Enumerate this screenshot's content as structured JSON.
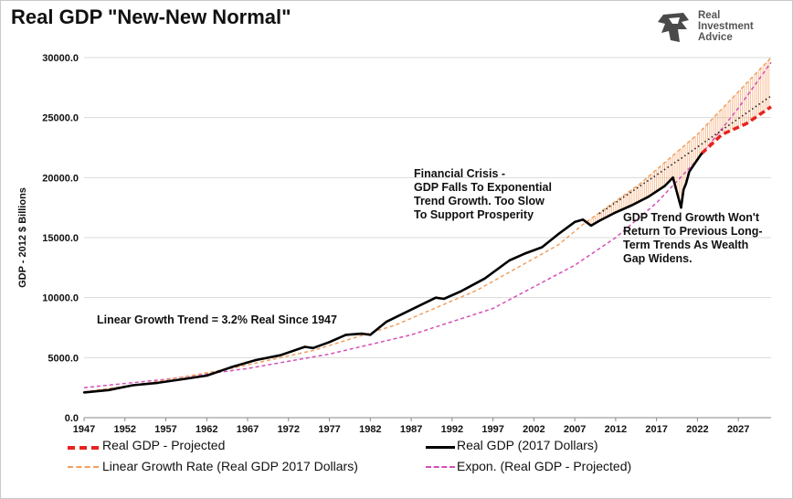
{
  "title": "Real GDP \"New-New Normal\"",
  "logo": {
    "name": "Real Investment Advice",
    "line1": "Real",
    "line2": "Investment",
    "line3": "Advice"
  },
  "chart_data": {
    "type": "line",
    "xlabel": "",
    "ylabel": "GDP - 2012 $ Billions",
    "xlim": [
      1947,
      2031
    ],
    "ylim": [
      0,
      30000
    ],
    "x_ticks": [
      "1947",
      "1952",
      "1957",
      "1962",
      "1967",
      "1972",
      "1977",
      "1982",
      "1987",
      "1992",
      "1997",
      "2002",
      "2007",
      "2012",
      "2017",
      "2022",
      "2027"
    ],
    "y_ticks": [
      "0.0",
      "5000.0",
      "10000.0",
      "15000.0",
      "20000.0",
      "25000.0",
      "30000.0"
    ],
    "grid": "horizontal",
    "legend": "bottom",
    "colors": {
      "actual": "#000000",
      "projected": "#e8231f",
      "linear": "#f0a060",
      "expon": "#d54fb8",
      "projected_fill": "#f5a36a",
      "trend_dots": "#222222"
    },
    "series": [
      {
        "name": "Real GDP (2017 Dollars)",
        "style": "solid-black",
        "x": [
          1947,
          1950,
          1953,
          1956,
          1959,
          1962,
          1965,
          1968,
          1971,
          1974,
          1975,
          1977,
          1979,
          1981,
          1982,
          1984,
          1987,
          1990,
          1991,
          1993,
          1996,
          1999,
          2001,
          2003,
          2005,
          2007,
          2008,
          2009,
          2010,
          2012,
          2014,
          2016,
          2018,
          2019,
          2020,
          2020.3,
          2020.6,
          2021,
          2022,
          2022.5
        ],
        "values": [
          2100,
          2300,
          2700,
          2900,
          3200,
          3500,
          4200,
          4800,
          5200,
          5900,
          5800,
          6300,
          6900,
          7000,
          6900,
          8000,
          9000,
          10000,
          9900,
          10500,
          11600,
          13100,
          13700,
          14200,
          15300,
          16300,
          16500,
          16000,
          16400,
          17100,
          17700,
          18400,
          19300,
          20000,
          17500,
          19000,
          19500,
          20500,
          21500,
          22000
        ]
      },
      {
        "name": "Real GDP - Projected",
        "style": "dashed-red",
        "x": [
          2022.5,
          2025,
          2028,
          2031
        ],
        "values": [
          22000,
          23600,
          24500,
          25900
        ]
      },
      {
        "name": "Linear Growth Rate (Real GDP 2017 Dollars)",
        "style": "dashed-orange",
        "x": [
          1947,
          1955,
          1965,
          1975,
          1985,
          1995,
          2005,
          2008,
          2015,
          2022,
          2031
        ],
        "values": [
          2150,
          2900,
          4100,
          5600,
          7700,
          10600,
          14400,
          16100,
          19500,
          23600,
          30000
        ]
      },
      {
        "name": "Expon. (Real GDP - Projected)",
        "style": "dashed-magenta",
        "x": [
          1947,
          1957,
          1967,
          1977,
          1987,
          1997,
          2007,
          2012,
          2017,
          2022,
          2027,
          2031
        ],
        "values": [
          2500,
          3200,
          4100,
          5300,
          6900,
          9100,
          12700,
          15000,
          17900,
          21500,
          25800,
          29600
        ]
      }
    ],
    "trend_dotted": {
      "x": [
        2010,
        2020,
        2031
      ],
      "values": [
        17000,
        21600,
        26800
      ]
    },
    "annotations": [
      {
        "text": [
          "Financial Crisis -",
          "GDP Falls To Exponential",
          "Trend Growth. Too Slow",
          "To Support Prosperity"
        ]
      },
      {
        "text": [
          "GDP Trend Growth Won't",
          "Return To Previous Long-",
          "Term Trends As Wealth",
          "Gap Widens."
        ]
      },
      {
        "text": [
          "Linear Growth Trend = 3.2% Real Since 1947"
        ]
      }
    ]
  },
  "legend_items": [
    {
      "label": "Real GDP - Projected"
    },
    {
      "label": "Real GDP (2017 Dollars)"
    },
    {
      "label": "Linear Growth Rate (Real GDP 2017 Dollars)"
    },
    {
      "label": "Expon. (Real GDP - Projected)"
    }
  ]
}
